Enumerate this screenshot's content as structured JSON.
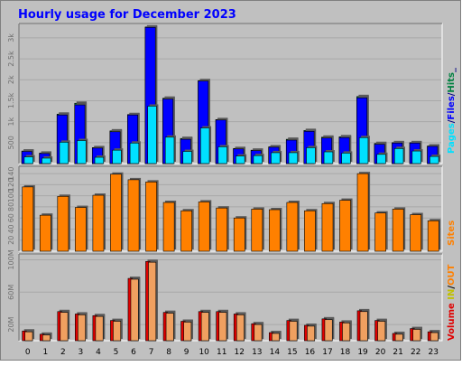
{
  "title": "Hourly usage for December 2023",
  "colors": {
    "background": "#c0c0c0",
    "title": "#0000ff",
    "hits": "#008040",
    "files": "#0000ff",
    "pages": "#00e0ff",
    "visits": "#ff8000",
    "sites": "#ff8000",
    "kbytes_in": "#e00000",
    "kbytes_out": "#f0a060"
  },
  "chart_data": [
    {
      "type": "bar",
      "name": "hits-files-pages",
      "side_label": [
        "Pages",
        "/",
        "Files",
        "/",
        "Hits",
        "_"
      ],
      "ytick_labels": [
        "500",
        "1k",
        "1.5k",
        "2k",
        "2.5k",
        "3k"
      ],
      "ytick_values": [
        500,
        1000,
        1500,
        2000,
        2500,
        3000
      ],
      "ylim": [
        0,
        3300
      ],
      "categories": [
        "0",
        "1",
        "2",
        "3",
        "4",
        "5",
        "6",
        "7",
        "8",
        "9",
        "10",
        "11",
        "12",
        "13",
        "14",
        "15",
        "16",
        "17",
        "18",
        "19",
        "20",
        "21",
        "22",
        "23"
      ],
      "series": [
        {
          "name": "Hits",
          "values": [
            300,
            250,
            1180,
            1440,
            380,
            780,
            1170,
            3260,
            1560,
            600,
            1980,
            1050,
            360,
            320,
            400,
            580,
            790,
            630,
            640,
            1600,
            480,
            500,
            500,
            420
          ]
        },
        {
          "name": "Files",
          "values": [
            290,
            240,
            1160,
            1400,
            370,
            760,
            1160,
            3250,
            1540,
            580,
            1970,
            1040,
            350,
            310,
            390,
            560,
            770,
            610,
            620,
            1570,
            460,
            490,
            490,
            410
          ]
        },
        {
          "name": "Pages",
          "values": [
            160,
            130,
            510,
            550,
            150,
            320,
            490,
            1370,
            630,
            290,
            850,
            400,
            180,
            190,
            260,
            260,
            380,
            280,
            250,
            620,
            220,
            360,
            300,
            170
          ]
        }
      ]
    },
    {
      "type": "bar",
      "name": "sites",
      "side_label": [
        "Sites"
      ],
      "ytick_labels": [
        "20",
        "40",
        "60",
        "80",
        "100",
        "120",
        "140"
      ],
      "ytick_values": [
        20,
        40,
        60,
        80,
        100,
        120,
        140
      ],
      "ylim": [
        0,
        150
      ],
      "categories": [
        "0",
        "1",
        "2",
        "3",
        "4",
        "5",
        "6",
        "7",
        "8",
        "9",
        "10",
        "11",
        "12",
        "13",
        "14",
        "15",
        "16",
        "17",
        "18",
        "19",
        "20",
        "21",
        "22",
        "23"
      ],
      "series": [
        {
          "name": "Sites",
          "values": [
            116,
            65,
            99,
            79,
            101,
            139,
            129,
            125,
            88,
            73,
            89,
            78,
            60,
            76,
            75,
            88,
            73,
            86,
            92,
            140,
            69,
            76,
            66,
            55
          ]
        }
      ]
    },
    {
      "type": "bar",
      "name": "volume",
      "side_label": [
        "Volume",
        " ",
        "IN",
        "/",
        "OUT"
      ],
      "ytick_labels": [
        "20M",
        "60M",
        "100M"
      ],
      "ytick_values": [
        20,
        60,
        100
      ],
      "ylim": [
        0,
        105
      ],
      "yunit": "M",
      "categories": [
        "0",
        "1",
        "2",
        "3",
        "4",
        "5",
        "6",
        "7",
        "8",
        "9",
        "10",
        "11",
        "12",
        "13",
        "14",
        "15",
        "16",
        "17",
        "18",
        "19",
        "20",
        "21",
        "22",
        "23"
      ],
      "series": [
        {
          "name": "IN",
          "values": [
            12,
            8,
            36,
            33,
            31,
            25,
            77,
            98,
            35,
            24,
            36,
            36,
            33,
            21,
            10,
            25,
            19,
            27,
            23,
            37,
            25,
            9,
            15,
            11
          ]
        },
        {
          "name": "OUT",
          "values": [
            11,
            7,
            35,
            32,
            30,
            24,
            76,
            97,
            34,
            23,
            35,
            35,
            32,
            20,
            9,
            24,
            18,
            26,
            22,
            36,
            24,
            8,
            14,
            10
          ]
        }
      ]
    }
  ]
}
